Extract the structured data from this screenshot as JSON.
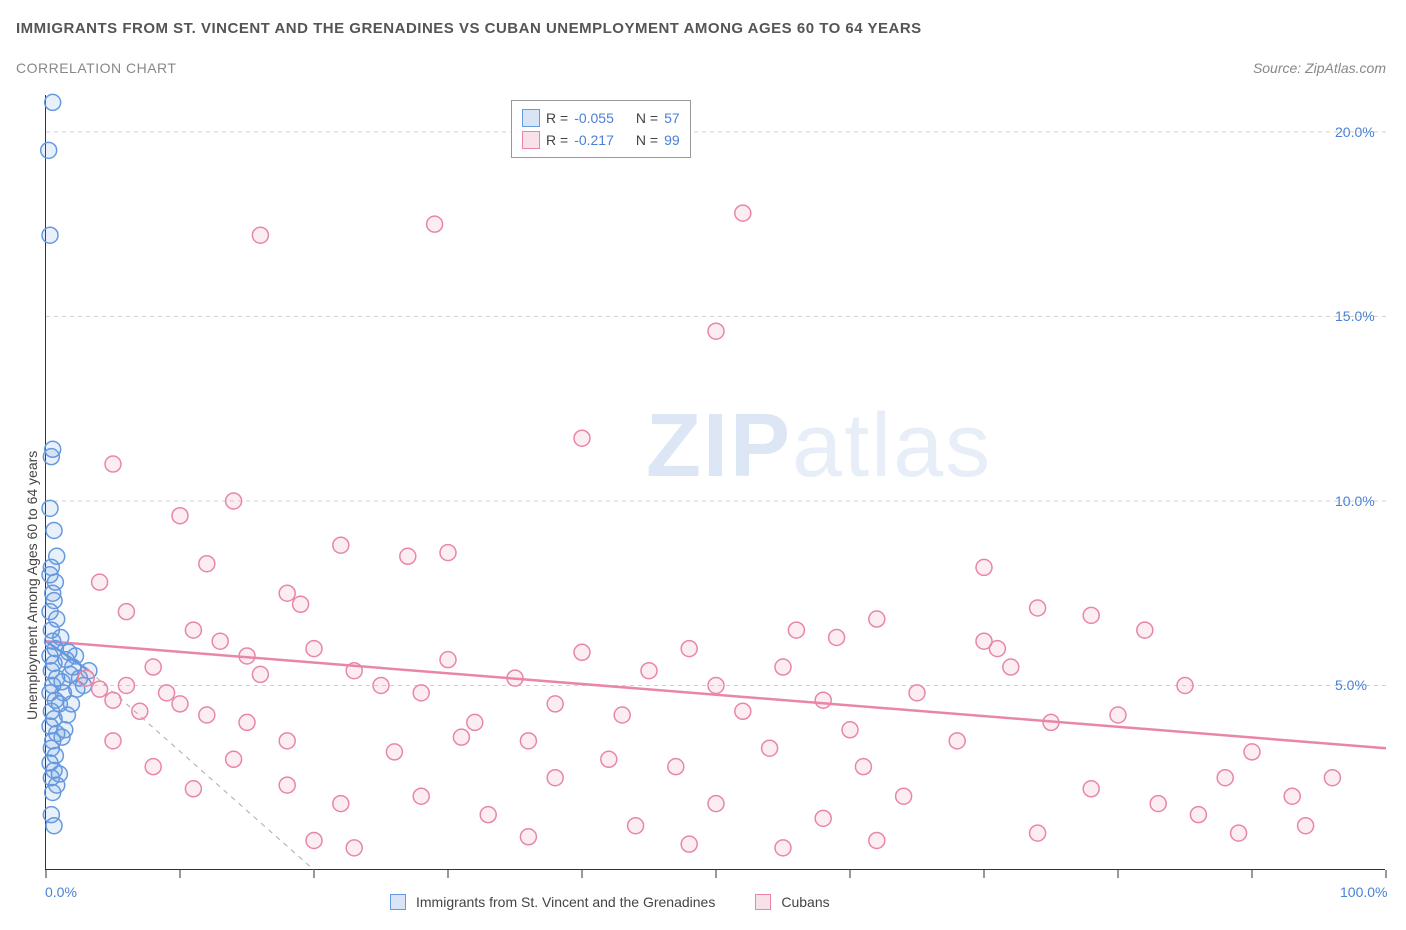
{
  "title": "IMMIGRANTS FROM ST. VINCENT AND THE GRENADINES VS CUBAN UNEMPLOYMENT AMONG AGES 60 TO 64 YEARS",
  "subtitle": "CORRELATION CHART",
  "source_label": "Source:",
  "source_value": "ZipAtlas.com",
  "ylabel": "Unemployment Among Ages 60 to 64 years",
  "watermark_zip": "ZIP",
  "watermark_atlas": "atlas",
  "chart": {
    "type": "scatter",
    "xlim": [
      0,
      100
    ],
    "ylim": [
      0,
      21
    ],
    "x_ticks": [
      0,
      10,
      20,
      30,
      40,
      50,
      60,
      70,
      80,
      90,
      100
    ],
    "x_tick_labels": [
      "0.0%",
      "",
      "",
      "",
      "",
      "",
      "",
      "",
      "",
      "",
      "100.0%"
    ],
    "y_ticks": [
      5,
      10,
      15,
      20
    ],
    "y_tick_labels": [
      "5.0%",
      "10.0%",
      "15.0%",
      "20.0%"
    ],
    "grid_color": "#d0d0d0",
    "background_color": "#ffffff",
    "axis_color": "#333333",
    "marker_radius": 8,
    "marker_stroke_width": 1.5,
    "marker_fill_opacity": 0.15,
    "series": [
      {
        "name": "Immigrants from St. Vincent and the Grenadines",
        "color": "#6699e0",
        "fill": "#6699e0",
        "r_value": "-0.055",
        "n_value": "57",
        "trend_line": {
          "x1": 0,
          "y1": 6.2,
          "x2": 3.2,
          "y2": 5.4
        },
        "trend_ext": {
          "x1": 3.2,
          "y1": 5.4,
          "x2": 20,
          "y2": 0
        },
        "points": [
          [
            0.5,
            20.8
          ],
          [
            0.2,
            19.5
          ],
          [
            0.3,
            17.2
          ],
          [
            0.5,
            11.4
          ],
          [
            0.4,
            11.2
          ],
          [
            0.3,
            9.8
          ],
          [
            0.6,
            9.2
          ],
          [
            0.8,
            8.5
          ],
          [
            0.4,
            8.2
          ],
          [
            0.3,
            8.0
          ],
          [
            0.7,
            7.8
          ],
          [
            0.5,
            7.5
          ],
          [
            0.6,
            7.3
          ],
          [
            0.3,
            7.0
          ],
          [
            0.8,
            6.8
          ],
          [
            0.4,
            6.5
          ],
          [
            0.5,
            6.2
          ],
          [
            0.7,
            6.0
          ],
          [
            0.3,
            5.8
          ],
          [
            0.6,
            5.6
          ],
          [
            0.4,
            5.4
          ],
          [
            0.8,
            5.2
          ],
          [
            0.5,
            5.0
          ],
          [
            0.3,
            4.8
          ],
          [
            0.7,
            4.6
          ],
          [
            1.0,
            4.5
          ],
          [
            0.4,
            4.3
          ],
          [
            0.6,
            4.1
          ],
          [
            0.3,
            3.9
          ],
          [
            0.8,
            3.7
          ],
          [
            1.2,
            3.6
          ],
          [
            0.5,
            3.5
          ],
          [
            0.4,
            3.3
          ],
          [
            0.7,
            3.1
          ],
          [
            0.3,
            2.9
          ],
          [
            0.6,
            2.7
          ],
          [
            1.0,
            2.6
          ],
          [
            0.4,
            2.5
          ],
          [
            0.8,
            2.3
          ],
          [
            0.5,
            2.1
          ],
          [
            1.5,
            5.7
          ],
          [
            1.8,
            5.3
          ],
          [
            1.3,
            4.8
          ],
          [
            2.0,
            5.5
          ],
          [
            1.6,
            4.2
          ],
          [
            2.2,
            5.8
          ],
          [
            1.4,
            3.8
          ],
          [
            1.9,
            4.5
          ],
          [
            2.5,
            5.2
          ],
          [
            1.1,
            6.3
          ],
          [
            1.7,
            5.9
          ],
          [
            2.3,
            4.9
          ],
          [
            1.2,
            5.1
          ],
          [
            2.8,
            5.0
          ],
          [
            0.4,
            1.5
          ],
          [
            0.6,
            1.2
          ],
          [
            3.2,
            5.4
          ]
        ]
      },
      {
        "name": "Cubans",
        "color": "#e986a8",
        "fill": "#e986a8",
        "r_value": "-0.217",
        "n_value": "99",
        "trend_line": {
          "x1": 0,
          "y1": 6.2,
          "x2": 100,
          "y2": 3.3
        },
        "points": [
          [
            16,
            17.2
          ],
          [
            29,
            17.5
          ],
          [
            52,
            17.8
          ],
          [
            50,
            14.6
          ],
          [
            40,
            11.7
          ],
          [
            5,
            11.0
          ],
          [
            14,
            10.0
          ],
          [
            10,
            9.6
          ],
          [
            22,
            8.8
          ],
          [
            12,
            8.3
          ],
          [
            27,
            8.5
          ],
          [
            30,
            8.6
          ],
          [
            70,
            8.2
          ],
          [
            4,
            7.8
          ],
          [
            18,
            7.5
          ],
          [
            19,
            7.2
          ],
          [
            74,
            7.1
          ],
          [
            78,
            6.9
          ],
          [
            62,
            6.8
          ],
          [
            56,
            6.5
          ],
          [
            59,
            6.3
          ],
          [
            70,
            6.2
          ],
          [
            71,
            6.0
          ],
          [
            82,
            6.5
          ],
          [
            6,
            7.0
          ],
          [
            11,
            6.5
          ],
          [
            13,
            6.2
          ],
          [
            15,
            5.8
          ],
          [
            8,
            5.5
          ],
          [
            20,
            6.0
          ],
          [
            6,
            5.0
          ],
          [
            9,
            4.8
          ],
          [
            10,
            4.5
          ],
          [
            12,
            4.2
          ],
          [
            3,
            5.2
          ],
          [
            4,
            4.9
          ],
          [
            5,
            4.6
          ],
          [
            7,
            4.3
          ],
          [
            16,
            5.3
          ],
          [
            23,
            5.4
          ],
          [
            25,
            5.0
          ],
          [
            28,
            4.8
          ],
          [
            30,
            5.7
          ],
          [
            35,
            5.2
          ],
          [
            38,
            4.5
          ],
          [
            40,
            5.9
          ],
          [
            43,
            4.2
          ],
          [
            45,
            5.4
          ],
          [
            32,
            4.0
          ],
          [
            36,
            3.5
          ],
          [
            50,
            5.0
          ],
          [
            52,
            4.3
          ],
          [
            48,
            6.0
          ],
          [
            55,
            5.5
          ],
          [
            58,
            4.6
          ],
          [
            60,
            3.8
          ],
          [
            65,
            4.8
          ],
          [
            68,
            3.5
          ],
          [
            72,
            5.5
          ],
          [
            75,
            4.0
          ],
          [
            80,
            4.2
          ],
          [
            85,
            5.0
          ],
          [
            88,
            2.5
          ],
          [
            90,
            3.2
          ],
          [
            93,
            2.0
          ],
          [
            96,
            2.5
          ],
          [
            83,
            1.8
          ],
          [
            86,
            1.5
          ],
          [
            78,
            2.2
          ],
          [
            64,
            2.0
          ],
          [
            58,
            1.4
          ],
          [
            50,
            1.8
          ],
          [
            44,
            1.2
          ],
          [
            38,
            2.5
          ],
          [
            33,
            1.5
          ],
          [
            28,
            2.0
          ],
          [
            22,
            1.8
          ],
          [
            18,
            2.3
          ],
          [
            14,
            3.0
          ],
          [
            26,
            3.2
          ],
          [
            31,
            3.6
          ],
          [
            42,
            3.0
          ],
          [
            47,
            2.8
          ],
          [
            54,
            3.3
          ],
          [
            61,
            2.8
          ],
          [
            20,
            0.8
          ],
          [
            23,
            0.6
          ],
          [
            36,
            0.9
          ],
          [
            48,
            0.7
          ],
          [
            55,
            0.6
          ],
          [
            62,
            0.8
          ],
          [
            74,
            1.0
          ],
          [
            5,
            3.5
          ],
          [
            8,
            2.8
          ],
          [
            11,
            2.2
          ],
          [
            15,
            4.0
          ],
          [
            18,
            3.5
          ],
          [
            94,
            1.2
          ],
          [
            89,
            1.0
          ]
        ]
      }
    ]
  },
  "top_legend": {
    "r_label": "R =",
    "n_label": "N ="
  },
  "bottom_legend": {
    "label1": "Immigrants from St. Vincent and the Grenadines",
    "label2": "Cubans"
  }
}
